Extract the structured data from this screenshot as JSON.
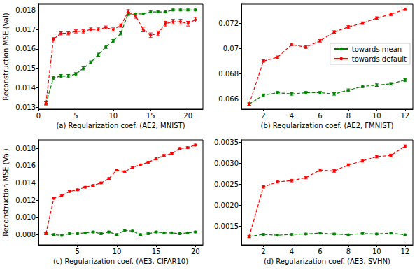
{
  "chart_data": [
    {
      "type": "line",
      "x_label": "(a) Regularization coef. (AE2, MNIST)",
      "y_label": "Reconstruction MSE (Val)",
      "x": [
        1,
        2,
        3,
        4,
        5,
        6,
        7,
        8,
        9,
        10,
        11,
        12,
        13,
        14,
        15,
        16,
        17,
        18,
        19,
        20,
        21
      ],
      "series": [
        {
          "name": "towards mean",
          "color": "#008000",
          "marker": "circle",
          "line_style": "dashed",
          "values": [
            0.0132,
            0.0145,
            0.0146,
            0.0146,
            0.0147,
            0.015,
            0.0153,
            0.0157,
            0.0161,
            0.0164,
            0.0168,
            0.0178,
            0.0178,
            0.0178,
            0.0179,
            0.0179,
            0.0179,
            0.018,
            0.018,
            0.018,
            0.018
          ],
          "errors": [
            8e-05,
            8e-05,
            8e-05,
            8e-05,
            8e-05,
            8e-05,
            8e-05,
            8e-05,
            8e-05,
            8e-05,
            8e-05,
            8e-05,
            5e-05,
            5e-05,
            5e-05,
            5e-05,
            5e-05,
            5e-05,
            5e-05,
            5e-05,
            5e-05
          ]
        },
        {
          "name": "towards default",
          "color": "#ff0000",
          "marker": "circle",
          "line_style": "dashed",
          "values": [
            0.0132,
            0.0165,
            0.0168,
            0.0168,
            0.0169,
            0.0169,
            0.017,
            0.017,
            0.0171,
            0.017,
            0.0172,
            0.0179,
            0.0177,
            0.017,
            0.0167,
            0.0168,
            0.0173,
            0.0174,
            0.0174,
            0.0173,
            0.0175
          ],
          "errors": [
            8e-05,
            8e-05,
            8e-05,
            8e-05,
            8e-05,
            8e-05,
            8e-05,
            8e-05,
            8e-05,
            8e-05,
            8e-05,
            0.00012,
            0.00012,
            0.00012,
            0.00012,
            0.00012,
            0.00012,
            0.00012,
            0.00012,
            0.00012,
            0.00012
          ]
        }
      ],
      "xlim": [
        0,
        22
      ],
      "xticks": [
        0,
        5,
        10,
        15,
        20
      ],
      "ylim": [
        0.0129,
        0.0183
      ],
      "yticks": [
        0.013,
        0.014,
        0.015,
        0.016,
        0.017,
        0.018
      ],
      "grid": false
    },
    {
      "type": "line",
      "x_label": "(b) Regularization coef. (AE2, FMNIST)",
      "x": [
        1,
        2,
        3,
        4,
        5,
        6,
        7,
        8,
        9,
        10,
        11,
        12
      ],
      "series": [
        {
          "name": "towards mean",
          "color": "#008000",
          "marker": "circle",
          "line_style": "dashed",
          "values": [
            0.0656,
            0.0663,
            0.0665,
            0.0664,
            0.0665,
            0.0665,
            0.0664,
            0.0667,
            0.067,
            0.0671,
            0.0672,
            0.0675
          ],
          "errors": [
            0.0001,
            0.0001,
            0.0001,
            0.0001,
            0.0001,
            0.0001,
            0.0001,
            0.0001,
            0.0001,
            0.0001,
            0.0001,
            0.0001
          ]
        },
        {
          "name": "towards default",
          "color": "#ff0000",
          "marker": "circle",
          "line_style": "dashed",
          "values": [
            0.0656,
            0.069,
            0.0693,
            0.0703,
            0.0701,
            0.0706,
            0.0713,
            0.0717,
            0.072,
            0.0724,
            0.0727,
            0.0731
          ],
          "errors": [
            0.0001,
            0.0001,
            0.0001,
            0.0001,
            0.0001,
            0.0001,
            0.0001,
            0.0001,
            0.0001,
            0.0001,
            0.0001,
            0.0001
          ]
        }
      ],
      "xlim": [
        0.45,
        12.55
      ],
      "xticks": [
        2,
        4,
        6,
        8,
        10,
        12
      ],
      "ylim": [
        0.0652,
        0.0735
      ],
      "yticks": [
        0.066,
        0.068,
        0.07,
        0.072
      ],
      "grid": false,
      "legend": "center right"
    },
    {
      "type": "line",
      "x_label": "(c) Regularization coef. (AE3, CIFAR10)",
      "y_label": "Reconstruction MSE (Val)",
      "x": [
        1,
        2,
        3,
        4,
        5,
        6,
        7,
        8,
        9,
        10,
        11,
        12,
        13,
        14,
        15,
        16,
        17,
        18,
        19,
        20
      ],
      "series": [
        {
          "name": "towards mean",
          "color": "#008000",
          "marker": "circle",
          "line_style": "dashed",
          "values": [
            0.0081,
            0.008,
            0.0079,
            0.0081,
            0.0081,
            0.0082,
            0.0083,
            0.0081,
            0.0083,
            0.008,
            0.0085,
            0.0084,
            0.008,
            0.0081,
            0.0083,
            0.0082,
            0.0082,
            0.0081,
            0.0082,
            0.0083
          ],
          "errors": [
            0.0001,
            0.0001,
            0.0001,
            0.0001,
            0.0001,
            0.0001,
            0.0001,
            0.0001,
            0.0001,
            0.0001,
            0.0001,
            0.0001,
            0.0001,
            0.0001,
            0.0001,
            0.0001,
            0.0001,
            0.0001,
            0.0001,
            0.0001
          ]
        },
        {
          "name": "towards default",
          "color": "#ff0000",
          "marker": "circle",
          "line_style": "dashed",
          "values": [
            0.0081,
            0.0122,
            0.0125,
            0.013,
            0.0132,
            0.0135,
            0.0137,
            0.014,
            0.0145,
            0.0155,
            0.0153,
            0.0158,
            0.0161,
            0.0164,
            0.0168,
            0.0172,
            0.0174,
            0.018,
            0.0181,
            0.0184
          ],
          "errors": [
            0.0001,
            0.0001,
            0.0001,
            0.0001,
            0.0001,
            0.0001,
            0.0001,
            0.0001,
            0.0001,
            0.0001,
            0.0001,
            0.0001,
            0.0001,
            0.0001,
            0.0001,
            0.0001,
            0.0001,
            0.0001,
            0.0001,
            0.0001
          ]
        }
      ],
      "xlim": [
        0.05,
        20.95
      ],
      "xticks": [
        5,
        10,
        15,
        20
      ],
      "ylim": [
        0.0068,
        0.019
      ],
      "yticks": [
        {
          "value": 0.008,
          "label": "0.008"
        },
        {
          "value": 0.01,
          "label": "0.010"
        },
        {
          "value": 0.012,
          "label": "0.012"
        },
        {
          "value": 0.014,
          "label": "0.014"
        },
        {
          "value": 0.016,
          "label": "0.016"
        },
        {
          "value": 0.018,
          "label": "0.018"
        }
      ],
      "grid": false
    },
    {
      "type": "line",
      "x_label": "(d) Regularization coef. (AE3, SVHN)",
      "x": [
        1,
        2,
        3,
        4,
        5,
        6,
        7,
        8,
        9,
        10,
        11,
        12
      ],
      "series": [
        {
          "name": "towards mean",
          "color": "#008000",
          "marker": "circle",
          "line_style": "dashed",
          "values": [
            0.00125,
            0.0013,
            0.00128,
            0.0013,
            0.00131,
            0.00133,
            0.00131,
            0.00129,
            0.00132,
            0.00131,
            0.00133,
            0.00129
          ],
          "errors": [
            2e-05,
            2e-05,
            2e-05,
            2e-05,
            2e-05,
            2e-05,
            2e-05,
            2e-05,
            2e-05,
            2e-05,
            2e-05,
            2e-05
          ]
        },
        {
          "name": "towards default",
          "color": "#ff0000",
          "marker": "circle",
          "line_style": "dashed",
          "values": [
            0.00125,
            0.00243,
            0.00255,
            0.00258,
            0.00265,
            0.00283,
            0.00281,
            0.00295,
            0.00305,
            0.00315,
            0.00318,
            0.0034
          ],
          "errors": [
            3e-05,
            3e-05,
            3e-05,
            3e-05,
            3e-05,
            3e-05,
            3e-05,
            3e-05,
            3e-05,
            3e-05,
            3e-05,
            3e-05
          ]
        }
      ],
      "xlim": [
        0.45,
        12.55
      ],
      "xticks": [
        2,
        4,
        6,
        8,
        10,
        12
      ],
      "ylim": [
        0.00105,
        0.00355
      ],
      "yticks": [
        {
          "value": 0.0015,
          "label": "0.0015"
        },
        {
          "value": 0.002,
          "label": "0.0020"
        },
        {
          "value": 0.0025,
          "label": "0.0025"
        },
        {
          "value": 0.003,
          "label": "0.0030"
        },
        {
          "value": 0.0035,
          "label": "0.0035"
        }
      ],
      "grid": false
    }
  ]
}
